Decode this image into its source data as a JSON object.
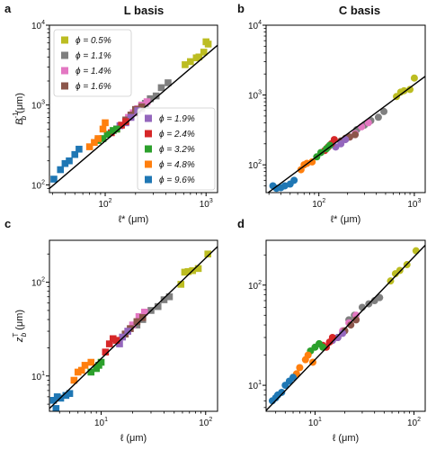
{
  "columns": [
    "L basis",
    "C basis"
  ],
  "colors": {
    "0.5%": "#bcbd22",
    "1.1%": "#7f7f7f",
    "1.4%": "#e377c2",
    "1.6%": "#8c564b",
    "1.9%": "#9467bd",
    "2.4%": "#d62728",
    "3.2%": "#2ca02c",
    "4.8%": "#ff7f0e",
    "9.6%": "#1f77b4",
    "fit": "#000000"
  },
  "chart_data": [
    {
      "panel": "a",
      "type": "scatter",
      "marker": "square",
      "xscale": "log",
      "yscale": "log",
      "xlim": [
        28,
        1300
      ],
      "ylim": [
        80,
        10000
      ],
      "xlabel": "ℓ* (μm)",
      "ylabel": "B_b^-1 (μm)",
      "xticks": [
        {
          "v": 100,
          "t": "10",
          "e": "2"
        },
        {
          "v": 1000,
          "t": "10",
          "e": "3"
        }
      ],
      "yticks": [
        {
          "v": 100,
          "t": "10",
          "e": "2"
        },
        {
          "v": 1000,
          "t": "10",
          "e": "3"
        },
        {
          "v": 10000,
          "t": "10",
          "e": "4"
        }
      ],
      "fit_line": [
        [
          28,
          90
        ],
        [
          1300,
          5600
        ]
      ],
      "legends": [
        {
          "corner": "top-left",
          "entries": [
            {
              "phi": "0.5%",
              "label": "ϕ = 0.5%"
            },
            {
              "phi": "1.1%",
              "label": "ϕ = 1.1%"
            },
            {
              "phi": "1.4%",
              "label": "ϕ = 1.4%"
            },
            {
              "phi": "1.6%",
              "label": "ϕ = 1.6%"
            }
          ]
        },
        {
          "corner": "bottom-right",
          "entries": [
            {
              "phi": "1.9%",
              "label": "ϕ = 1.9%"
            },
            {
              "phi": "2.4%",
              "label": "ϕ = 2.4%"
            },
            {
              "phi": "3.2%",
              "label": "ϕ = 3.2%"
            },
            {
              "phi": "4.8%",
              "label": "ϕ = 4.8%"
            },
            {
              "phi": "9.6%",
              "label": "ϕ = 9.6%"
            }
          ]
        }
      ],
      "series": [
        {
          "phi": "0.5%",
          "points": [
            [
              620,
              3200
            ],
            [
              700,
              3500
            ],
            [
              800,
              3900
            ],
            [
              850,
              4000
            ],
            [
              950,
              4600
            ],
            [
              1000,
              6200
            ],
            [
              1050,
              5800
            ]
          ]
        },
        {
          "phi": "1.1%",
          "points": [
            [
              200,
              800
            ],
            [
              230,
              900
            ],
            [
              250,
              1050
            ],
            [
              280,
              1200
            ],
            [
              320,
              1300
            ],
            [
              360,
              1650
            ],
            [
              420,
              1900
            ]
          ]
        },
        {
          "phi": "1.4%",
          "points": [
            [
              170,
              700
            ],
            [
              190,
              800
            ],
            [
              210,
              900
            ],
            [
              230,
              1000
            ],
            [
              260,
              1100
            ]
          ]
        },
        {
          "phi": "1.6%",
          "points": [
            [
              160,
              650
            ],
            [
              180,
              750
            ],
            [
              200,
              880
            ],
            [
              230,
              950
            ]
          ]
        },
        {
          "phi": "1.9%",
          "points": [
            [
              140,
              550
            ],
            [
              160,
              600
            ],
            [
              180,
              700
            ],
            [
              210,
              850
            ]
          ]
        },
        {
          "phi": "2.4%",
          "points": [
            [
              115,
              450
            ],
            [
              130,
              500
            ],
            [
              145,
              560
            ],
            [
              160,
              620
            ]
          ]
        },
        {
          "phi": "3.2%",
          "points": [
            [
              85,
              360
            ],
            [
              95,
              380
            ],
            [
              105,
              430
            ],
            [
              120,
              480
            ],
            [
              130,
              500
            ]
          ]
        },
        {
          "phi": "4.8%",
          "points": [
            [
              70,
              300
            ],
            [
              78,
              340
            ],
            [
              85,
              380
            ],
            [
              95,
              500
            ],
            [
              100,
              600
            ]
          ]
        },
        {
          "phi": "9.6%",
          "points": [
            [
              31,
              118
            ],
            [
              36,
              155
            ],
            [
              40,
              185
            ],
            [
              44,
              200
            ],
            [
              50,
              240
            ],
            [
              55,
              280
            ]
          ]
        }
      ]
    },
    {
      "panel": "b",
      "type": "scatter",
      "marker": "circle",
      "xscale": "log",
      "yscale": "log",
      "xlim": [
        28,
        1300
      ],
      "ylim": [
        40,
        10000
      ],
      "xlabel": "ℓ* (μm)",
      "ylabel": "",
      "xticks": [
        {
          "v": 100,
          "t": "10",
          "e": "2"
        },
        {
          "v": 1000,
          "t": "10",
          "e": "3"
        }
      ],
      "yticks": [
        {
          "v": 100,
          "t": "10",
          "e": "2"
        },
        {
          "v": 1000,
          "t": "10",
          "e": "3"
        },
        {
          "v": 10000,
          "t": "10",
          "e": "4"
        }
      ],
      "fit_line": [
        [
          28,
          38
        ],
        [
          1300,
          1850
        ]
      ],
      "legends": [],
      "series": [
        {
          "phi": "0.5%",
          "points": [
            [
              650,
              950
            ],
            [
              720,
              1100
            ],
            [
              780,
              1150
            ],
            [
              900,
              1200
            ],
            [
              1000,
              1750
            ]
          ]
        },
        {
          "phi": "1.1%",
          "points": [
            [
              250,
              320
            ],
            [
              300,
              370
            ],
            [
              350,
              430
            ],
            [
              420,
              480
            ],
            [
              480,
              580
            ]
          ]
        },
        {
          "phi": "1.4%",
          "points": [
            [
              210,
              250
            ],
            [
              240,
              280
            ],
            [
              280,
              350
            ],
            [
              330,
              400
            ]
          ]
        },
        {
          "phi": "1.6%",
          "points": [
            [
              170,
              220
            ],
            [
              190,
              240
            ],
            [
              210,
              250
            ],
            [
              240,
              270
            ]
          ]
        },
        {
          "phi": "1.9%",
          "points": [
            [
              150,
              180
            ],
            [
              170,
              200
            ],
            [
              190,
              230
            ]
          ]
        },
        {
          "phi": "2.4%",
          "points": [
            [
              115,
              160
            ],
            [
              125,
              180
            ],
            [
              135,
              200
            ],
            [
              145,
              230
            ]
          ]
        },
        {
          "phi": "3.2%",
          "points": [
            [
              95,
              130
            ],
            [
              105,
              150
            ],
            [
              120,
              170
            ],
            [
              130,
              190
            ]
          ]
        },
        {
          "phi": "4.8%",
          "points": [
            [
              65,
              85
            ],
            [
              70,
              100
            ],
            [
              75,
              105
            ],
            [
              85,
              110
            ]
          ]
        },
        {
          "phi": "9.6%",
          "points": [
            [
              33,
              50
            ],
            [
              36,
              46
            ],
            [
              40,
              47
            ],
            [
              44,
              50
            ],
            [
              50,
              53
            ],
            [
              55,
              60
            ]
          ]
        }
      ]
    },
    {
      "panel": "c",
      "type": "scatter",
      "marker": "square",
      "xscale": "log",
      "yscale": "log",
      "xlim": [
        3.2,
        130
      ],
      "ylim": [
        4.2,
        280
      ],
      "xlabel": "ℓ (μm)",
      "ylabel": "z_b^T (μm)",
      "xticks": [
        {
          "v": 10,
          "t": "10",
          "e": "1"
        },
        {
          "v": 100,
          "t": "10",
          "e": "2"
        }
      ],
      "yticks": [
        {
          "v": 10,
          "t": "10",
          "e": "1"
        },
        {
          "v": 100,
          "t": "10",
          "e": "2"
        }
      ],
      "fit_line": [
        [
          3.2,
          4.5
        ],
        [
          130,
          240
        ]
      ],
      "legends": [],
      "series": [
        {
          "phi": "0.5%",
          "points": [
            [
              58,
              95
            ],
            [
              63,
              128
            ],
            [
              68,
              130
            ],
            [
              75,
              133
            ],
            [
              85,
              140
            ],
            [
              105,
              200
            ]
          ]
        },
        {
          "phi": "1.1%",
          "points": [
            [
              22,
              35
            ],
            [
              25,
              40
            ],
            [
              30,
              50
            ],
            [
              35,
              55
            ],
            [
              40,
              65
            ],
            [
              45,
              70
            ]
          ]
        },
        {
          "phi": "1.4%",
          "points": [
            [
              18,
              30
            ],
            [
              20,
              35
            ],
            [
              23,
              43
            ],
            [
              26,
              48
            ]
          ]
        },
        {
          "phi": "1.6%",
          "points": [
            [
              17,
              28
            ],
            [
              19,
              32
            ],
            [
              22,
              38
            ],
            [
              25,
              42
            ]
          ]
        },
        {
          "phi": "1.9%",
          "points": [
            [
              15,
              22
            ],
            [
              16,
              26
            ],
            [
              18,
              30
            ]
          ]
        },
        {
          "phi": "2.4%",
          "points": [
            [
              11,
              18
            ],
            [
              12,
              22
            ],
            [
              13,
              25
            ],
            [
              14,
              24
            ]
          ]
        },
        {
          "phi": "3.2%",
          "points": [
            [
              8,
              11
            ],
            [
              9,
              12
            ],
            [
              9.5,
              13
            ],
            [
              10,
              14
            ]
          ]
        },
        {
          "phi": "4.8%",
          "points": [
            [
              5.5,
              9
            ],
            [
              6,
              11
            ],
            [
              6.5,
              11.5
            ],
            [
              7,
              13
            ],
            [
              8,
              14
            ]
          ]
        },
        {
          "phi": "9.6%",
          "points": [
            [
              3.5,
              5.5
            ],
            [
              3.8,
              6
            ],
            [
              4.1,
              5.8
            ],
            [
              4.6,
              6.2
            ],
            [
              5,
              6.5
            ],
            [
              3.7,
              4.5
            ]
          ]
        }
      ]
    },
    {
      "panel": "d",
      "type": "scatter",
      "marker": "circle",
      "xscale": "log",
      "yscale": "log",
      "xlim": [
        3.2,
        130
      ],
      "ylim": [
        5.5,
        280
      ],
      "xlabel": "ℓ (μm)",
      "ylabel": "",
      "xticks": [
        {
          "v": 10,
          "t": "10",
          "e": "1"
        },
        {
          "v": 100,
          "t": "10",
          "e": "2"
        }
      ],
      "yticks": [
        {
          "v": 10,
          "t": "10",
          "e": "1"
        },
        {
          "v": 100,
          "t": "10",
          "e": "2"
        }
      ],
      "fit_line": [
        [
          3.2,
          5.6
        ],
        [
          130,
          250
        ]
      ],
      "legends": [],
      "series": [
        {
          "phi": "0.5%",
          "points": [
            [
              58,
              110
            ],
            [
              65,
              130
            ],
            [
              72,
              140
            ],
            [
              85,
              160
            ],
            [
              105,
              220
            ]
          ]
        },
        {
          "phi": "1.1%",
          "points": [
            [
              22,
              45
            ],
            [
              25,
              50
            ],
            [
              30,
              60
            ],
            [
              35,
              65
            ],
            [
              40,
              70
            ],
            [
              45,
              75
            ]
          ]
        },
        {
          "phi": "1.4%",
          "points": [
            [
              19,
              35
            ],
            [
              22,
              42
            ],
            [
              26,
              50
            ]
          ]
        },
        {
          "phi": "1.6%",
          "points": [
            [
              17,
              30
            ],
            [
              20,
              35
            ],
            [
              23,
              40
            ],
            [
              26,
              45
            ]
          ]
        },
        {
          "phi": "1.9%",
          "points": [
            [
              15,
              28
            ],
            [
              17,
              30
            ],
            [
              19,
              33
            ]
          ]
        },
        {
          "phi": "2.4%",
          "points": [
            [
              13,
              24
            ],
            [
              14,
              27
            ],
            [
              15,
              30
            ],
            [
              12,
              25
            ]
          ]
        },
        {
          "phi": "3.2%",
          "points": [
            [
              9,
              22
            ],
            [
              10,
              24
            ],
            [
              11,
              26
            ],
            [
              12,
              24
            ]
          ]
        },
        {
          "phi": "4.8%",
          "points": [
            [
              6.5,
              13
            ],
            [
              7,
              15
            ],
            [
              8,
              18
            ],
            [
              8.5,
              20
            ],
            [
              9.5,
              17
            ]
          ]
        },
        {
          "phi": "9.6%",
          "points": [
            [
              3.7,
              7
            ],
            [
              4,
              7.5
            ],
            [
              4.2,
              8
            ],
            [
              4.6,
              8.5
            ],
            [
              5,
              10
            ],
            [
              5.5,
              11
            ],
            [
              6,
              12
            ]
          ]
        }
      ]
    }
  ]
}
